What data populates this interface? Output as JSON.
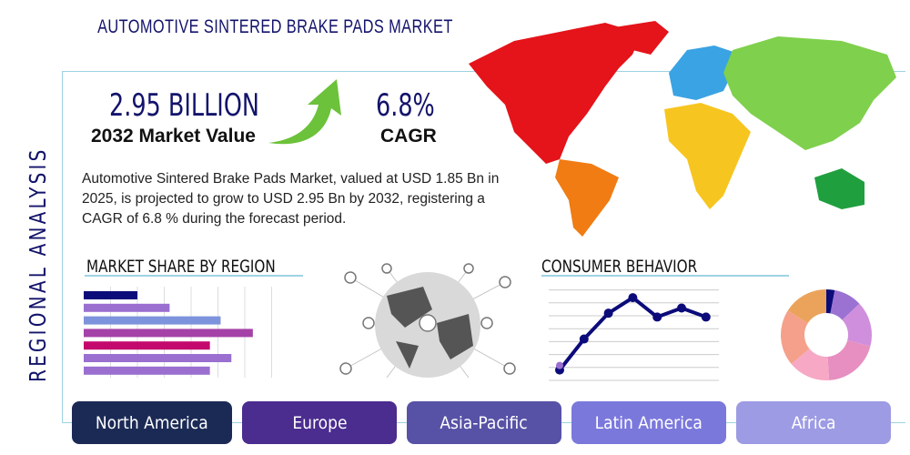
{
  "title": "AUTOMOTIVE SINTERED BRAKE PADS MARKET",
  "side_label": "REGIONAL ANALYSIS",
  "market_value": {
    "value": "2.95 BILLION",
    "label": "2032 Market Value"
  },
  "cagr": {
    "value": "6.8%",
    "label": "CAGR"
  },
  "description": "Automotive Sintered Brake Pads Market, valued at USD 1.85 Bn in 2025, is projected to grow to USD 2.95 Bn by 2032, registering a CAGR of 6.8 % during the forecast period.",
  "sections": {
    "market_share": "MARKET SHARE BY REGION",
    "consumer": "CONSUMER BEHAVIOR"
  },
  "regions": [
    {
      "label": "North America",
      "color": "#1b2a55"
    },
    {
      "label": "Europe",
      "color": "#4b2c8f"
    },
    {
      "label": "Asia-Pacific",
      "color": "#5752a6"
    },
    {
      "label": "Latin America",
      "color": "#7b78dc"
    },
    {
      "label": "Africa",
      "color": "#9d9be3"
    }
  ],
  "chart_data": [
    {
      "type": "bar",
      "orientation": "horizontal",
      "values": [
        2.0,
        3.2,
        5.1,
        6.3,
        4.7,
        5.5,
        4.7
      ],
      "colors": [
        "#0b0b7a",
        "#9a6fd0",
        "#7d94dc",
        "#a542a8",
        "#c4096e",
        "#9a6fd0",
        "#9a6fd0"
      ],
      "xlim": [
        0,
        7
      ],
      "grid": true
    },
    {
      "type": "line",
      "values": [
        0.8,
        3.2,
        5.2,
        6.4,
        4.9,
        5.6,
        4.9
      ],
      "color": "#0b0b7a",
      "ylim": [
        0,
        7
      ],
      "grid": true
    },
    {
      "type": "pie",
      "donut": true,
      "values": [
        3,
        10,
        16,
        20,
        15,
        20,
        16
      ],
      "colors": [
        "#0b0b7a",
        "#9b72d2",
        "#cf8fdc",
        "#e68fc0",
        "#f6a8c4",
        "#f5a08a",
        "#eba35c"
      ]
    }
  ]
}
